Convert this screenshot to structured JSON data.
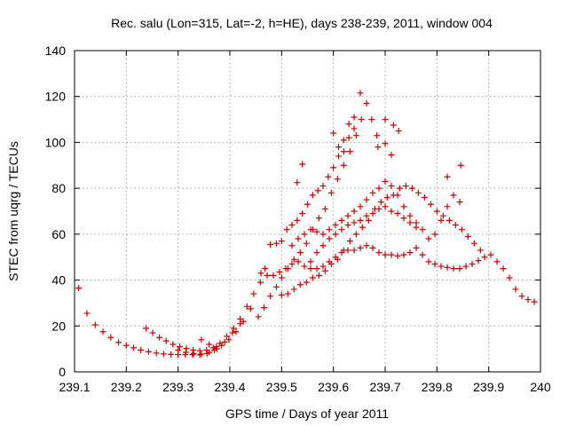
{
  "chart_data": {
    "type": "scatter",
    "title": "Rec. salu (Lon=315, Lat=-2, h=HE), days 238-239, 2011, window 004",
    "xlabel": "GPS time / Days of year 2011",
    "ylabel": "STEC from uqrg / TECUs",
    "xlim": [
      239.1,
      240.0
    ],
    "ylim": [
      0,
      140
    ],
    "x_ticks": [
      239.1,
      239.2,
      239.3,
      239.4,
      239.5,
      239.6,
      239.7,
      239.8,
      239.9,
      240.0
    ],
    "x_tick_labels": [
      "239.1",
      "239.2",
      "239.3",
      "239.4",
      "239.5",
      "239.6",
      "239.7",
      "239.8",
      "239.9",
      "240"
    ],
    "y_ticks": [
      0,
      20,
      40,
      60,
      80,
      100,
      120,
      140
    ],
    "y_tick_labels": [
      "0",
      "20",
      "40",
      "60",
      "80",
      "100",
      "120",
      "140"
    ],
    "grid": true,
    "legend": "none",
    "marker": "plus",
    "colors": {
      "points": "#cc0000"
    },
    "points": [
      [
        239.108,
        36.5
      ],
      [
        239.124,
        25.5
      ],
      [
        239.14,
        20.5
      ],
      [
        239.155,
        17.5
      ],
      [
        239.17,
        15
      ],
      [
        239.185,
        12.8
      ],
      [
        239.2,
        11.5
      ],
      [
        239.214,
        10.5
      ],
      [
        239.228,
        9.5
      ],
      [
        239.243,
        8.8
      ],
      [
        239.258,
        8.2
      ],
      [
        239.272,
        7.8
      ],
      [
        239.286,
        7.6
      ],
      [
        239.3,
        7.5
      ],
      [
        239.314,
        7.5
      ],
      [
        239.328,
        7.5
      ],
      [
        239.342,
        7.4
      ],
      [
        239.356,
        8
      ],
      [
        239.37,
        9.5
      ],
      [
        239.384,
        11.5
      ],
      [
        239.398,
        14
      ],
      [
        239.412,
        17.5
      ],
      [
        239.426,
        22
      ],
      [
        239.44,
        27.5
      ],
      [
        239.238,
        19
      ],
      [
        239.251,
        17
      ],
      [
        239.264,
        15
      ],
      [
        239.277,
        13.5
      ],
      [
        239.29,
        12
      ],
      [
        239.303,
        11
      ],
      [
        239.316,
        10.2
      ],
      [
        239.329,
        9.5
      ],
      [
        239.342,
        9.2
      ],
      [
        239.355,
        9.5
      ],
      [
        239.368,
        10.5
      ],
      [
        239.381,
        12.5
      ],
      [
        239.394,
        15.5
      ],
      [
        239.407,
        19
      ],
      [
        239.42,
        23
      ],
      [
        239.433,
        28.5
      ],
      [
        239.446,
        34
      ],
      [
        239.459,
        39
      ],
      [
        239.3,
        9.5
      ],
      [
        239.315,
        8.5
      ],
      [
        239.33,
        8
      ],
      [
        239.345,
        7.8
      ],
      [
        239.36,
        8.5
      ],
      [
        239.375,
        10
      ],
      [
        239.39,
        13
      ],
      [
        239.405,
        17
      ],
      [
        239.42,
        21
      ],
      [
        239.345,
        14
      ],
      [
        239.36,
        12
      ],
      [
        239.374,
        11
      ],
      [
        239.455,
        24
      ],
      [
        239.466,
        28
      ],
      [
        239.478,
        33
      ],
      [
        239.49,
        37
      ],
      [
        239.5,
        41
      ],
      [
        239.512,
        45
      ],
      [
        239.524,
        49
      ],
      [
        239.536,
        52
      ],
      [
        239.548,
        56
      ],
      [
        239.56,
        62
      ],
      [
        239.572,
        67
      ],
      [
        239.584,
        71
      ],
      [
        239.596,
        78
      ],
      [
        239.608,
        84
      ],
      [
        239.62,
        90
      ],
      [
        239.632,
        96
      ],
      [
        239.644,
        103
      ],
      [
        239.654,
        110
      ],
      [
        239.664,
        117
      ],
      [
        239.674,
        110
      ],
      [
        239.684,
        103
      ],
      [
        239.652,
        121.5
      ],
      [
        239.468,
        45
      ],
      [
        239.478,
        55.5
      ],
      [
        239.49,
        56
      ],
      [
        239.5,
        57
      ],
      [
        239.51,
        62
      ],
      [
        239.52,
        64
      ],
      [
        239.53,
        66
      ],
      [
        239.54,
        69
      ],
      [
        239.55,
        73
      ],
      [
        239.56,
        77
      ],
      [
        239.57,
        79
      ],
      [
        239.58,
        81
      ],
      [
        239.59,
        85
      ],
      [
        239.6,
        89
      ],
      [
        239.61,
        94
      ],
      [
        239.62,
        96
      ],
      [
        239.63,
        102
      ],
      [
        239.64,
        106
      ],
      [
        239.6,
        104
      ],
      [
        239.61,
        98
      ],
      [
        239.62,
        101
      ],
      [
        239.63,
        108
      ],
      [
        239.64,
        111
      ],
      [
        239.46,
        43
      ],
      [
        239.472,
        42
      ],
      [
        239.484,
        42
      ],
      [
        239.496,
        43.5
      ],
      [
        239.508,
        45
      ],
      [
        239.52,
        47
      ],
      [
        239.532,
        48
      ],
      [
        239.544,
        46
      ],
      [
        239.556,
        45
      ],
      [
        239.568,
        45
      ],
      [
        239.58,
        46
      ],
      [
        239.592,
        48
      ],
      [
        239.604,
        50
      ],
      [
        239.616,
        52
      ],
      [
        239.628,
        53
      ],
      [
        239.64,
        53
      ],
      [
        239.652,
        54
      ],
      [
        239.664,
        55
      ],
      [
        239.676,
        54
      ],
      [
        239.688,
        52
      ],
      [
        239.7,
        51
      ],
      [
        239.712,
        51
      ],
      [
        239.724,
        50.5
      ],
      [
        239.736,
        51
      ],
      [
        239.748,
        52
      ],
      [
        239.76,
        54
      ],
      [
        239.772,
        51
      ],
      [
        239.784,
        48
      ],
      [
        239.796,
        47
      ],
      [
        239.808,
        46
      ],
      [
        239.82,
        45.5
      ],
      [
        239.832,
        45
      ],
      [
        239.844,
        45
      ],
      [
        239.856,
        46
      ],
      [
        239.868,
        47
      ],
      [
        239.88,
        48.5
      ],
      [
        239.892,
        50
      ],
      [
        239.904,
        51
      ],
      [
        239.916,
        48
      ],
      [
        239.928,
        45
      ],
      [
        239.94,
        41
      ],
      [
        239.952,
        36
      ],
      [
        239.964,
        33
      ],
      [
        239.976,
        31.5
      ],
      [
        239.988,
        30.5
      ],
      [
        239.5,
        33.5
      ],
      [
        239.512,
        34
      ],
      [
        239.524,
        36
      ],
      [
        239.536,
        38
      ],
      [
        239.548,
        39
      ],
      [
        239.56,
        41
      ],
      [
        239.572,
        42
      ],
      [
        239.584,
        44
      ],
      [
        239.596,
        47
      ],
      [
        239.608,
        49
      ],
      [
        239.62,
        53
      ],
      [
        239.632,
        57
      ],
      [
        239.644,
        60
      ],
      [
        239.656,
        63
      ],
      [
        239.668,
        66
      ],
      [
        239.68,
        71
      ],
      [
        239.692,
        74
      ],
      [
        239.704,
        76
      ],
      [
        239.716,
        77
      ],
      [
        239.728,
        80
      ],
      [
        239.74,
        81
      ],
      [
        239.752,
        80
      ],
      [
        239.764,
        78
      ],
      [
        239.776,
        76
      ],
      [
        239.788,
        73
      ],
      [
        239.8,
        70
      ],
      [
        239.812,
        68
      ],
      [
        239.824,
        66
      ],
      [
        239.836,
        64
      ],
      [
        239.848,
        62
      ],
      [
        239.86,
        59
      ],
      [
        239.872,
        56
      ],
      [
        239.884,
        53
      ],
      [
        239.52,
        55
      ],
      [
        239.532,
        58
      ],
      [
        239.544,
        60
      ],
      [
        239.556,
        62
      ],
      [
        239.568,
        61
      ],
      [
        239.58,
        60
      ],
      [
        239.592,
        62
      ],
      [
        239.604,
        64
      ],
      [
        239.616,
        66
      ],
      [
        239.628,
        68
      ],
      [
        239.64,
        70
      ],
      [
        239.652,
        72
      ],
      [
        239.664,
        75
      ],
      [
        239.676,
        78
      ],
      [
        239.688,
        80
      ],
      [
        239.7,
        83
      ],
      [
        239.712,
        81
      ],
      [
        239.724,
        77
      ],
      [
        239.736,
        72
      ],
      [
        239.748,
        68
      ],
      [
        239.76,
        65
      ],
      [
        239.772,
        62
      ],
      [
        239.784,
        58
      ],
      [
        239.796,
        60
      ],
      [
        239.808,
        66
      ],
      [
        239.82,
        72
      ],
      [
        239.832,
        77
      ],
      [
        239.844,
        74
      ],
      [
        239.54,
        90.5
      ],
      [
        239.53,
        82.5
      ],
      [
        239.7,
        99.5
      ],
      [
        239.712,
        94.5
      ],
      [
        239.716,
        107.5
      ],
      [
        239.726,
        105
      ],
      [
        239.82,
        85
      ],
      [
        239.846,
        90
      ],
      [
        239.7,
        110
      ],
      [
        239.686,
        98
      ],
      [
        239.556,
        48
      ],
      [
        239.568,
        52
      ],
      [
        239.58,
        55
      ],
      [
        239.592,
        58
      ],
      [
        239.604,
        60
      ],
      [
        239.616,
        62
      ],
      [
        239.628,
        64
      ],
      [
        239.64,
        65
      ],
      [
        239.652,
        66
      ],
      [
        239.664,
        68
      ],
      [
        239.676,
        69
      ],
      [
        239.688,
        71
      ],
      [
        239.7,
        72
      ],
      [
        239.712,
        70
      ],
      [
        239.724,
        69
      ],
      [
        239.736,
        67
      ],
      [
        239.748,
        65
      ],
      [
        239.76,
        63
      ]
    ]
  }
}
